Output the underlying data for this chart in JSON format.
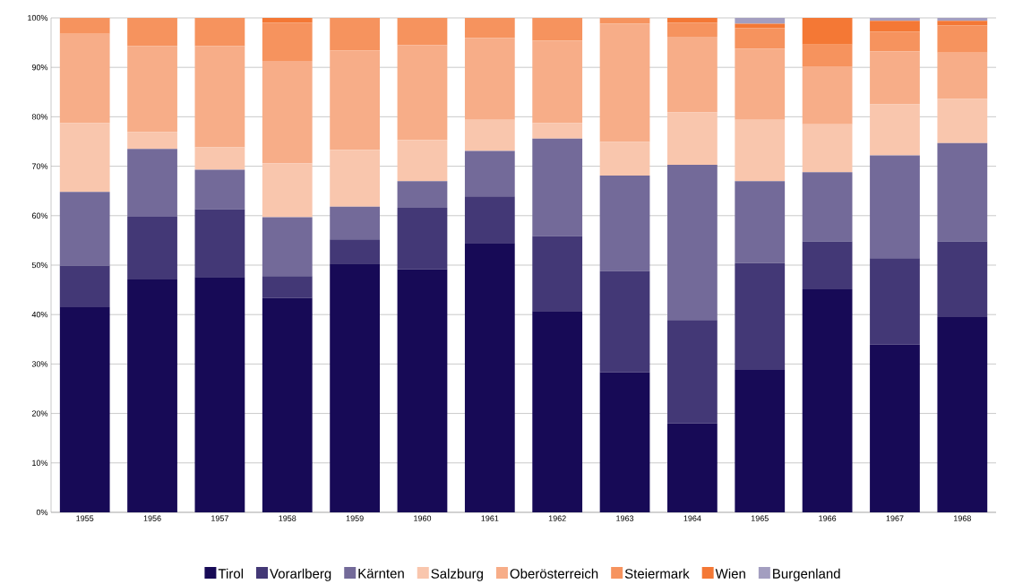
{
  "chart_data": {
    "type": "bar",
    "stacked": true,
    "categories": [
      "1955",
      "1956",
      "1957",
      "1958",
      "1959",
      "1960",
      "1961",
      "1962",
      "1963",
      "1964",
      "1965",
      "1966",
      "1967",
      "1968"
    ],
    "series": [
      {
        "name": "Tirol",
        "color": "#170a56",
        "values": [
          41.5,
          47.1,
          47.6,
          43.4,
          50.3,
          49.2,
          54.5,
          40.7,
          28.3,
          18.0,
          28.8,
          45.1,
          33.9,
          39.5
        ]
      },
      {
        "name": "Vorarlberg",
        "color": "#433876",
        "values": [
          8.4,
          12.7,
          13.7,
          4.4,
          4.9,
          12.4,
          9.4,
          15.2,
          20.5,
          20.9,
          21.6,
          9.7,
          17.5,
          15.3
        ]
      },
      {
        "name": "Kärnten",
        "color": "#736a99",
        "values": [
          14.9,
          13.7,
          8.0,
          11.9,
          6.6,
          5.4,
          9.2,
          19.7,
          19.3,
          31.4,
          16.6,
          14.0,
          20.8,
          19.9
        ]
      },
      {
        "name": "Salzburg",
        "color": "#f9c6ad",
        "values": [
          13.9,
          3.4,
          4.5,
          10.9,
          11.5,
          8.3,
          6.3,
          3.1,
          6.8,
          10.6,
          12.4,
          9.7,
          10.3,
          8.9
        ]
      },
      {
        "name": "Oberösterreich",
        "color": "#f7ad88",
        "values": [
          18.1,
          17.4,
          20.5,
          20.7,
          20.1,
          19.2,
          16.5,
          16.7,
          23.9,
          15.3,
          14.4,
          11.7,
          10.7,
          9.4
        ]
      },
      {
        "name": "Steiermark",
        "color": "#f6935e",
        "values": [
          3.2,
          5.7,
          5.7,
          7.7,
          6.6,
          5.5,
          4.1,
          4.6,
          1.2,
          2.8,
          4.1,
          4.4,
          4.0,
          5.5
        ]
      },
      {
        "name": "Wien",
        "color": "#f47835",
        "values": [
          0,
          0,
          0,
          1.0,
          0,
          0,
          0,
          0,
          0,
          1.0,
          0.9,
          5.4,
          2.2,
          0.9
        ]
      },
      {
        "name": "Burgenland",
        "color": "#a39ec0",
        "values": [
          0,
          0,
          0,
          0,
          0,
          0,
          0,
          0,
          0,
          0,
          1.2,
          0,
          0.6,
          0.6
        ]
      }
    ],
    "ylim": [
      0,
      100
    ],
    "yticks": [
      {
        "value": 0,
        "label": "0%"
      },
      {
        "value": 10,
        "label": "10%"
      },
      {
        "value": 20,
        "label": "20%"
      },
      {
        "value": 30,
        "label": "30%"
      },
      {
        "value": 40,
        "label": "40%"
      },
      {
        "value": 50,
        "label": "50%"
      },
      {
        "value": 60,
        "label": "60%"
      },
      {
        "value": 70,
        "label": "70%"
      },
      {
        "value": 80,
        "label": "80%"
      },
      {
        "value": 90,
        "label": "90%"
      },
      {
        "value": 100,
        "label": "100%"
      }
    ],
    "grid": "y",
    "legend": "bottom"
  }
}
